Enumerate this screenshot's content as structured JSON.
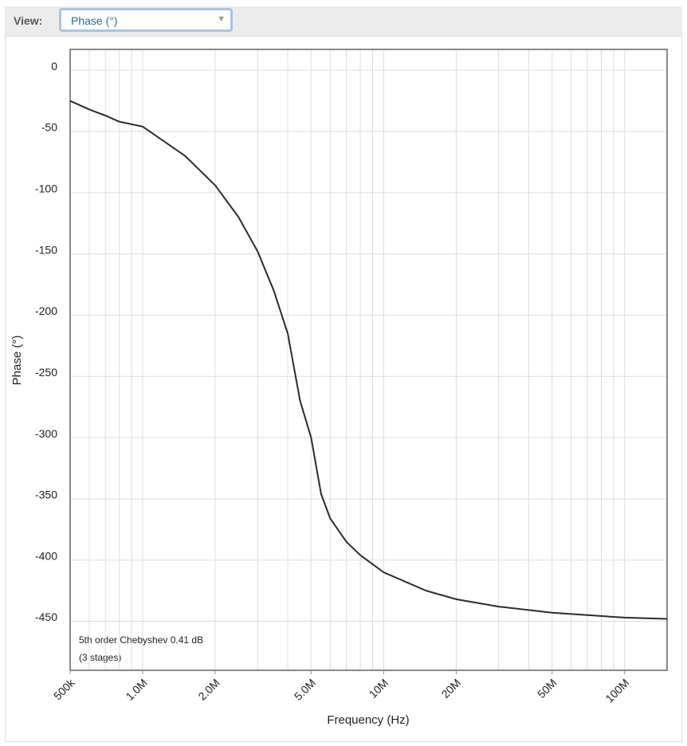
{
  "ui": {
    "view_label": "View:",
    "view_select": "Phase (°)"
  },
  "chart_data": {
    "type": "line",
    "xlabel": "Frequency (Hz)",
    "ylabel": "Phase (°)",
    "annotations": [
      "5th order Chebyshev 0.41 dB",
      "(3 stages)"
    ],
    "x": [
      500000,
      600000,
      700000,
      800000,
      1000000,
      1500000,
      2000000,
      2500000,
      3000000,
      3500000,
      4000000,
      4500000,
      5000000,
      5500000,
      6000000,
      7000000,
      8000000,
      10000000,
      15000000,
      20000000,
      30000000,
      50000000,
      100000000,
      150000000
    ],
    "values": [
      -25,
      -32,
      -37,
      -42,
      -46,
      -70,
      -94,
      -120,
      -148,
      -180,
      -215,
      -270,
      -300,
      -346,
      -366,
      -385,
      -396,
      -410,
      -425,
      -432,
      -438,
      -443,
      -447,
      -448
    ],
    "color": "#2b2b2b",
    "log_x": true,
    "grid": true,
    "xlim": [
      500000,
      150000000
    ],
    "xticks": [
      {
        "value": 500000,
        "label": "500k"
      },
      {
        "value": 1000000,
        "label": "1.0M"
      },
      {
        "value": 2000000,
        "label": "2.0M"
      },
      {
        "value": 5000000,
        "label": "5.0M"
      },
      {
        "value": 10000000,
        "label": "10M"
      },
      {
        "value": 20000000,
        "label": "20M"
      },
      {
        "value": 50000000,
        "label": "50M"
      },
      {
        "value": 100000000,
        "label": "100M"
      }
    ],
    "ylim": [
      -490,
      17
    ],
    "yticks": [
      0,
      -50,
      -100,
      -150,
      -200,
      -250,
      -300,
      -350,
      -400,
      -450
    ]
  }
}
